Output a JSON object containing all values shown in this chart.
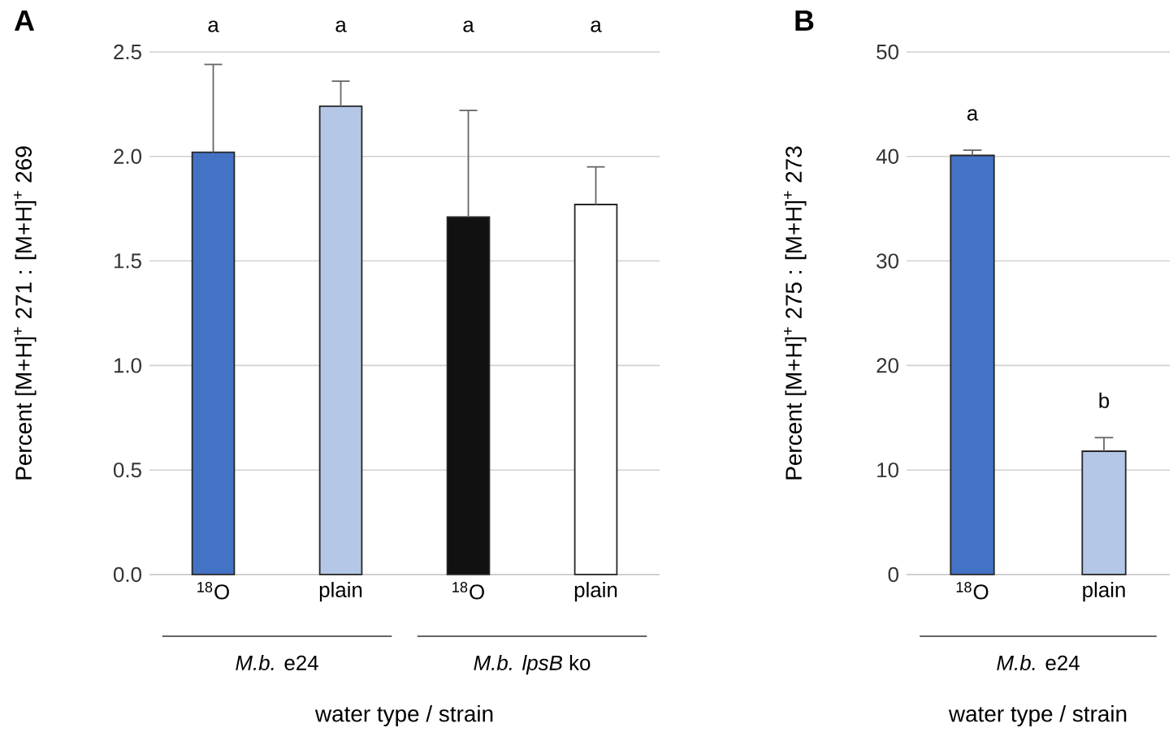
{
  "chart_data": [
    {
      "type": "bar",
      "title": "A",
      "xlabel": "water type / strain",
      "ylabel": "Percent [M+H]$^{+}$ 271 : [M+H]$^{+}$ 269",
      "categories": [
        "$^{18}$O",
        "plain",
        "$^{18}$O",
        "plain"
      ],
      "values": [
        2.02,
        2.24,
        1.71,
        1.77
      ],
      "colors": [
        "#4472c4",
        "#b4c7e7",
        "#111111",
        "#ffffff"
      ],
      "errors": [
        [
          2.02,
          2.44
        ],
        [
          2.24,
          2.36
        ],
        [
          1.71,
          2.22
        ],
        [
          1.77,
          1.95
        ]
      ],
      "ylim": [
        0,
        2.5
      ],
      "yticks": [
        {
          "value": 0,
          "label": "0.0"
        },
        {
          "value": 0.5,
          "label": "0.5"
        },
        {
          "value": 1,
          "label": "1.0"
        },
        {
          "value": 1.5,
          "label": "1.5"
        },
        {
          "value": 2,
          "label": "2.0"
        },
        {
          "value": 2.5,
          "label": "2.5"
        }
      ],
      "grid": "y",
      "annotations": [
        "a",
        "a",
        "a",
        "a",
        "*M.b.* e24",
        "*M.b. lpsB* ko"
      ]
    },
    {
      "type": "bar",
      "title": "B",
      "xlabel": "water type / strain",
      "ylabel": "Percent [M+H]$^{+}$ 275 : [M+H]$^{+}$ 273",
      "categories": [
        "$^{18}$O",
        "plain"
      ],
      "values": [
        40.1,
        11.8
      ],
      "colors": [
        "#4472c4",
        "#b4c7e7"
      ],
      "errors": [
        [
          40.1,
          40.6
        ],
        [
          11.8,
          13.1
        ]
      ],
      "ylim": [
        0,
        50
      ],
      "yticks": [
        0,
        10,
        20,
        30,
        40,
        50
      ],
      "grid": "y",
      "annotations": [
        "a",
        "b",
        "*M.b.* e24"
      ]
    }
  ]
}
